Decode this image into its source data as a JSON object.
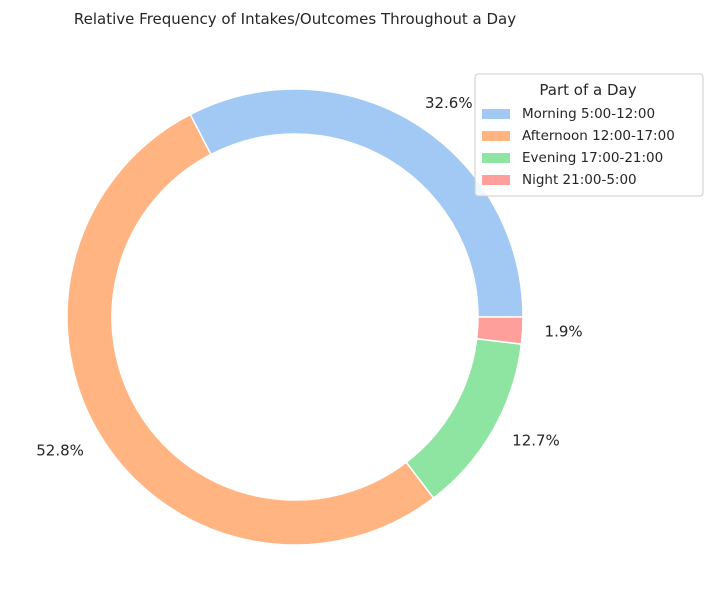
{
  "chart_data": {
    "type": "pie",
    "title": "Relative Frequency of Intakes/Outcomes Throughout a Day",
    "donut": true,
    "start_angle_deg": 0,
    "direction": "counterclockwise",
    "legend": {
      "title": "Part of a Day",
      "placement": "top-right"
    },
    "slices": [
      {
        "label": "Morning 5:00-12:00",
        "value": 32.6,
        "value_label": "32.6%",
        "color": "#a1c9f4"
      },
      {
        "label": "Afternoon 12:00-17:00",
        "value": 52.8,
        "value_label": "52.8%",
        "color": "#ffb482"
      },
      {
        "label": "Evening 17:00-21:00",
        "value": 12.7,
        "value_label": "12.7%",
        "color": "#8de5a1"
      },
      {
        "label": "Night 21:00-5:00",
        "value": 1.9,
        "value_label": "1.9%",
        "color": "#ff9f9b"
      }
    ]
  }
}
